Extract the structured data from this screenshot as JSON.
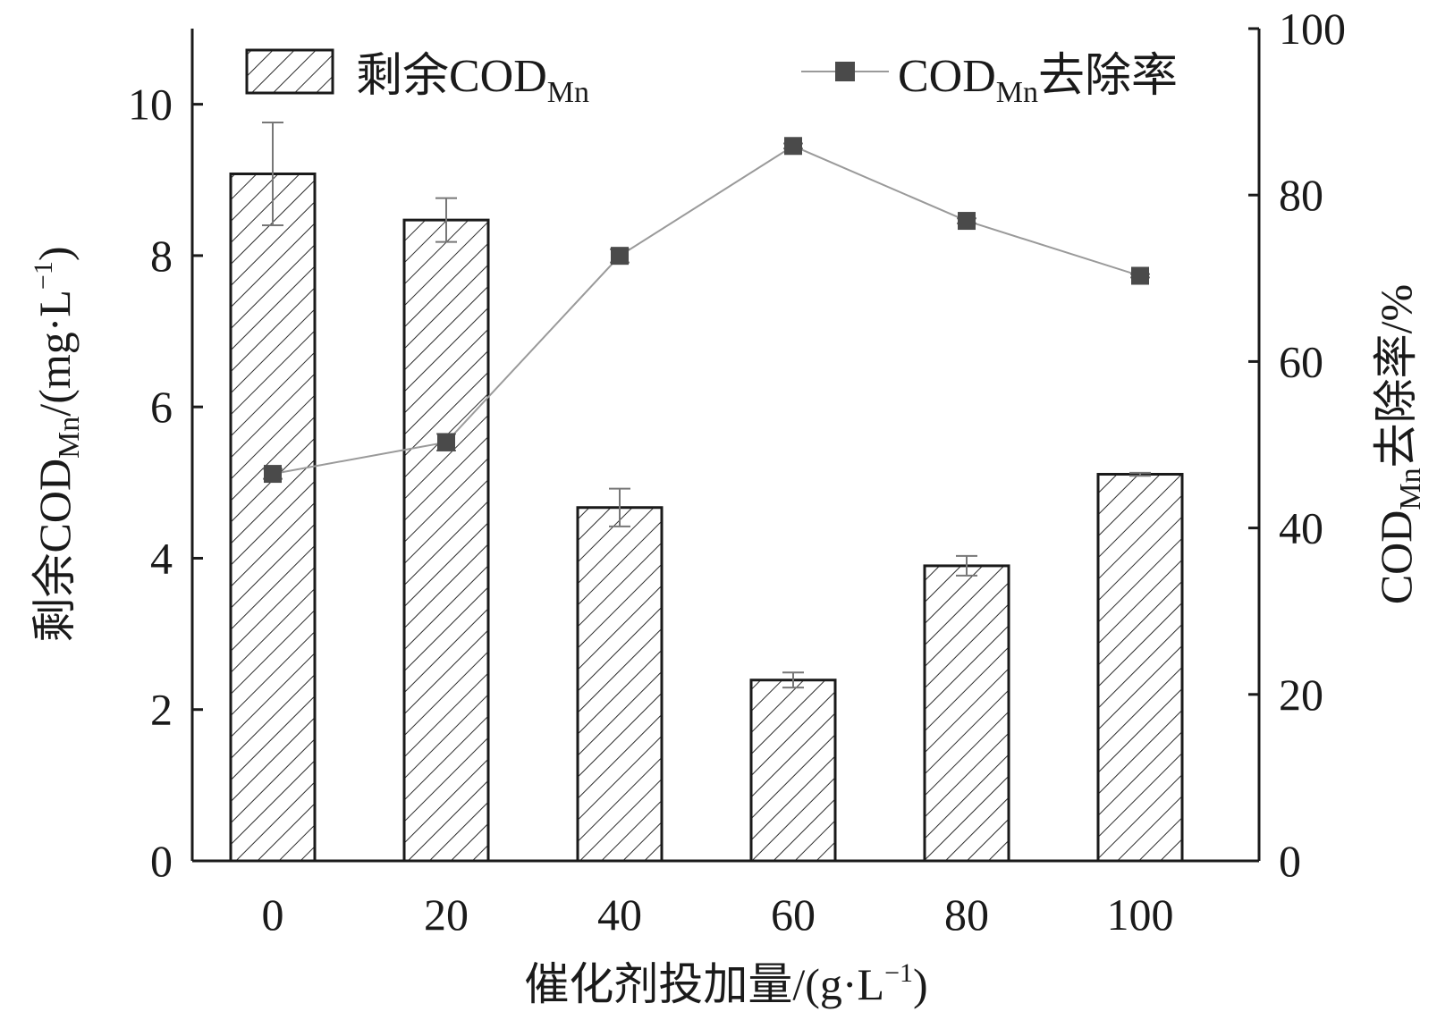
{
  "chart_data": {
    "type": "bar+line",
    "categories": [
      "0",
      "20",
      "40",
      "60",
      "80",
      "100"
    ],
    "x_axis": {
      "label_prefix": "催化剂投加量/(g·L",
      "label_sup": "−1",
      "label_suffix": ")"
    },
    "y_left": {
      "label_prefix": "剩余COD",
      "label_sub": "Mn",
      "label_mid": "/(mg·L",
      "label_sup": "−1",
      "label_suffix": ")",
      "ylim": [
        0,
        11
      ],
      "ticks": [
        "0",
        "2",
        "4",
        "6",
        "8",
        "10"
      ]
    },
    "y_right": {
      "label_prefix": "COD",
      "label_sub": "Mn",
      "label_suffix": "去除率/%",
      "ylim": [
        0,
        100
      ],
      "ticks": [
        "0",
        "20",
        "40",
        "60",
        "80",
        "100"
      ]
    },
    "series": [
      {
        "name": "剩余COD",
        "name_sub": "Mn",
        "kind": "bar",
        "axis": "left",
        "values": [
          9.08,
          8.47,
          4.67,
          2.39,
          3.9,
          5.11
        ],
        "errors": [
          0.68,
          0.29,
          0.25,
          0.1,
          0.13,
          0.02
        ]
      },
      {
        "name": "COD",
        "name_sub": "Mn",
        "name_suffix": "去除率",
        "kind": "line",
        "axis": "right",
        "values": [
          46.5,
          50.3,
          72.7,
          85.9,
          76.9,
          70.3
        ],
        "errors": [
          0.6,
          1.0,
          0.8,
          0.3,
          0.3,
          0.2
        ]
      }
    ],
    "legend_position": "top",
    "grid": false
  },
  "colors": {
    "bar_stroke": "#1a1a1a",
    "hatch": "#2b2b2b",
    "line": "#9a9a9a",
    "marker": "#4a4a4a",
    "axis": "#1a1a1a",
    "errorbar": "#777777"
  }
}
